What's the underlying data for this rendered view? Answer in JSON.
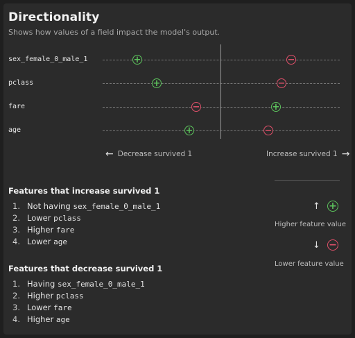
{
  "header": {
    "title": "Directionality",
    "subtitle": "Shows how values of a field impact the model's output."
  },
  "features": [
    {
      "name": "sex_female_0_male_1",
      "plus": "+",
      "minus": "−"
    },
    {
      "name": "pclass",
      "plus": "+",
      "minus": "−"
    },
    {
      "name": "fare",
      "plus": "+",
      "minus": "−"
    },
    {
      "name": "age",
      "plus": "+",
      "minus": "−"
    }
  ],
  "axis": {
    "decrease_label": "Decrease survived 1",
    "increase_label": "Increase survived 1"
  },
  "increase_section": {
    "title": "Features that increase survived 1",
    "items": [
      {
        "num": "1.",
        "text": "Not having ",
        "code": "sex_female_0_male_1"
      },
      {
        "num": "2.",
        "text": "Lower ",
        "code": "pclass"
      },
      {
        "num": "3.",
        "text": "Higher ",
        "code": "fare"
      },
      {
        "num": "4.",
        "text": "Lower ",
        "code": "age"
      }
    ]
  },
  "decrease_section": {
    "title": "Features that decrease survived 1",
    "items": [
      {
        "num": "1.",
        "text": "Having ",
        "code": "sex_female_0_male_1"
      },
      {
        "num": "2.",
        "text": "Higher ",
        "code": "pclass"
      },
      {
        "num": "3.",
        "text": "Lower ",
        "code": "fare"
      },
      {
        "num": "4.",
        "text": "Higher ",
        "code": "age"
      }
    ]
  },
  "legend": {
    "higher_label": "Higher feature value",
    "lower_label": "Lower feature value",
    "up_arrow": "↑",
    "down_arrow": "↓",
    "plus": "+",
    "minus": "−"
  },
  "colors": {
    "positive": "#5cc35c",
    "negative": "#e0506a"
  }
}
